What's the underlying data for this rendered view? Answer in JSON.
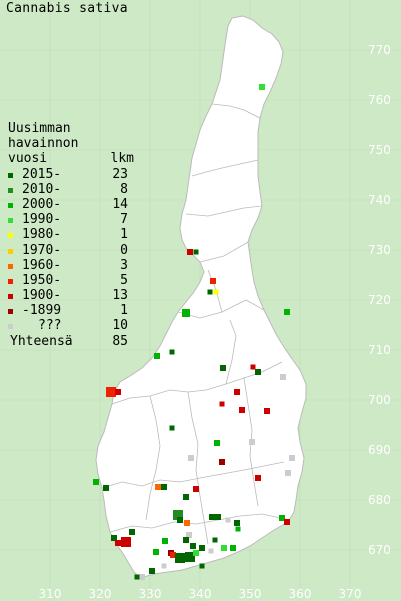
{
  "title": "Cannabis sativa",
  "legend": {
    "heading_lines": [
      "Uusimman",
      "havainnon",
      "vuosi"
    ],
    "count_header": "lkm",
    "rows": [
      {
        "label": "2015-",
        "count": "23",
        "color": "#006600"
      },
      {
        "label": "2010-",
        "count": "8",
        "color": "#228b22"
      },
      {
        "label": "2000-",
        "count": "14",
        "color": "#00b300"
      },
      {
        "label": "1990-",
        "count": "7",
        "color": "#33dd33"
      },
      {
        "label": "1980-",
        "count": "1",
        "color": "#ffff00"
      },
      {
        "label": "1970-",
        "count": "0",
        "color": "#ffcc00"
      },
      {
        "label": "1960-",
        "count": "3",
        "color": "#ff6600"
      },
      {
        "label": "1950-",
        "count": "5",
        "color": "#ee2200"
      },
      {
        "label": "1900-",
        "count": "13",
        "color": "#cc0000"
      },
      {
        "label": "-1899",
        "count": "1",
        "color": "#990000"
      },
      {
        "label": "???",
        "count": "10",
        "color": "#cccccc"
      }
    ],
    "total_label": "Yhteensä",
    "total_count": "85"
  },
  "y_axis_labels": [
    "770",
    "760",
    "750",
    "740",
    "730",
    "720",
    "710",
    "700",
    "690",
    "680",
    "670"
  ],
  "x_axis_labels": [
    "310",
    "320",
    "330",
    "340",
    "350",
    "360",
    "370"
  ]
}
